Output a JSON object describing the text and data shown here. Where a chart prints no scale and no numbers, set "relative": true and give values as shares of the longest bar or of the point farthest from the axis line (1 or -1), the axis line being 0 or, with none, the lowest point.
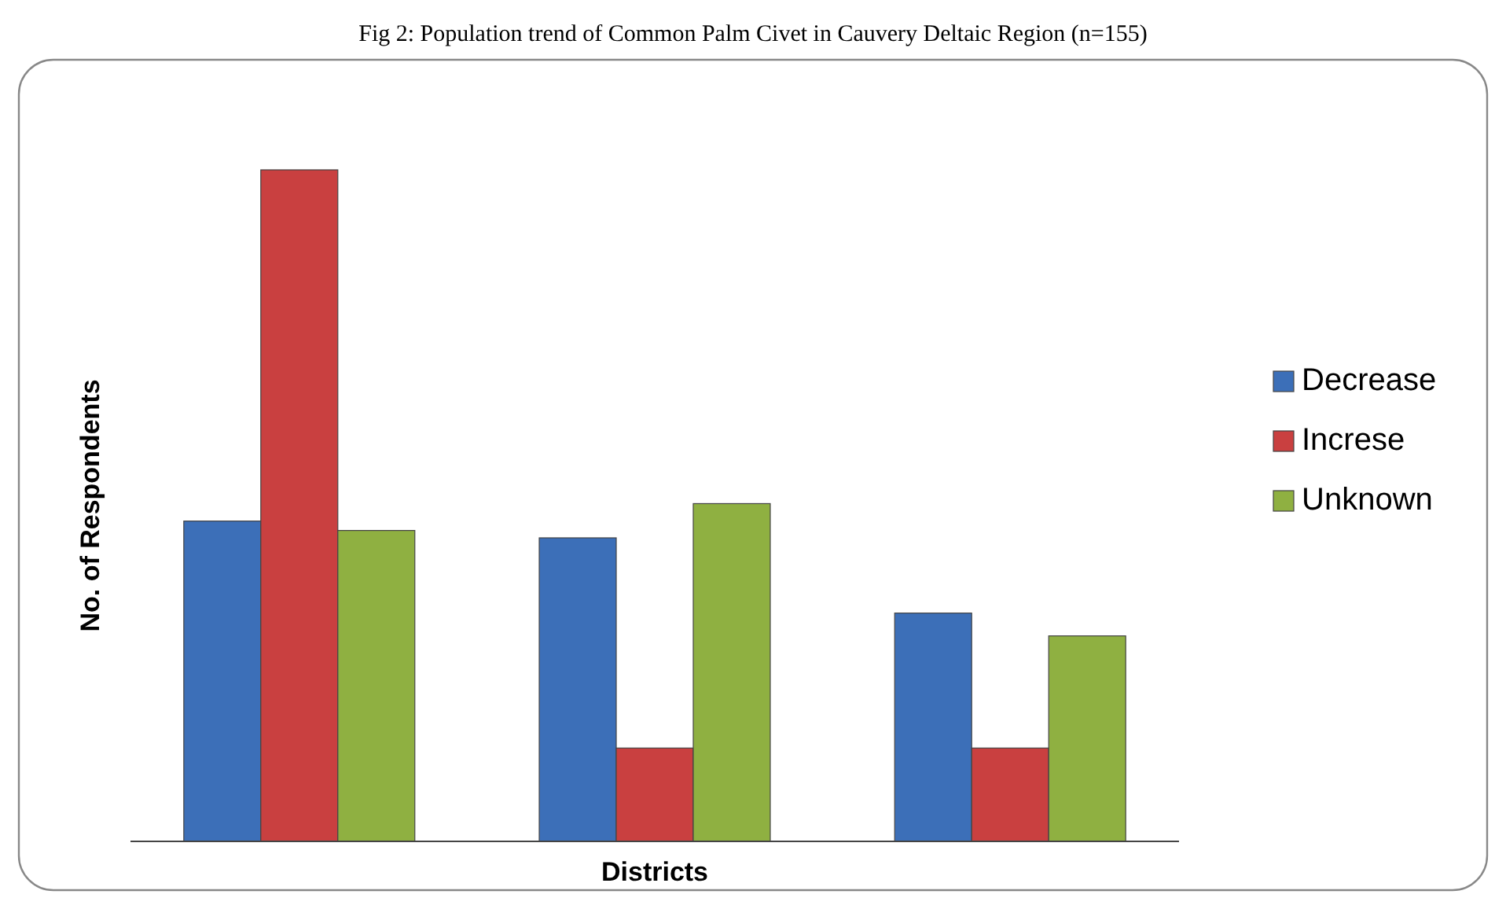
{
  "chart_data": {
    "type": "bar",
    "title": "Fig 2: Population trend of Common Palm Civet in Cauvery Deltaic Region (n=155)",
    "xlabel": "Districts",
    "ylabel": "No. of Respondents",
    "relative": true,
    "categories": [
      null,
      null,
      null
    ],
    "legend": "right",
    "series": [
      {
        "name": "Decrease",
        "color": "#3c6fb8",
        "values": [
          0.477,
          0.452,
          0.34
        ]
      },
      {
        "name": "Increse",
        "color": "#c94040",
        "values": [
          1,
          0.139,
          0.139
        ]
      },
      {
        "name": "Unknown",
        "color": "#8fb041",
        "values": [
          0.463,
          0.503,
          0.306
        ]
      }
    ]
  }
}
